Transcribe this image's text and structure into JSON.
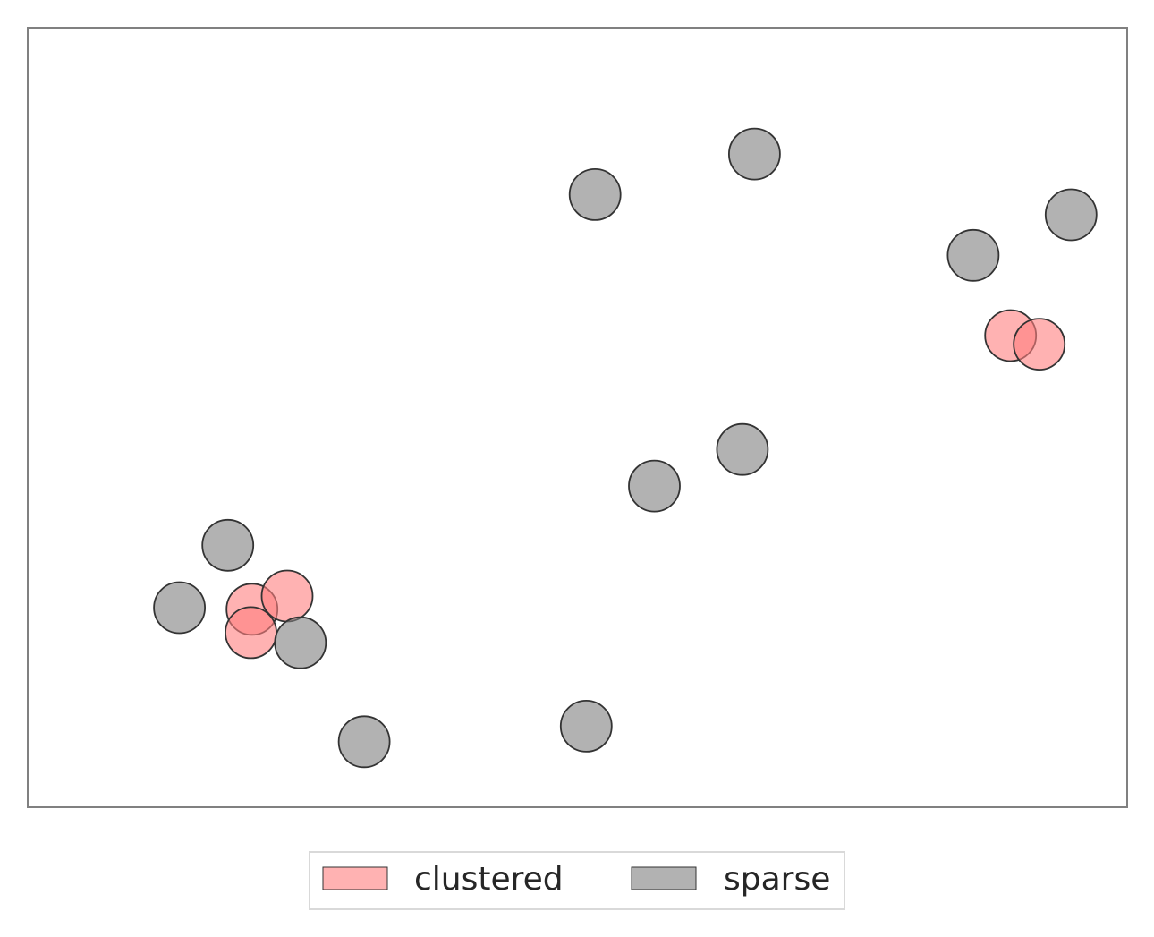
{
  "chart_data": {
    "type": "scatter",
    "title": "",
    "xlabel": "",
    "ylabel": "",
    "axes_visible": false,
    "grid": false,
    "xlim": [
      0,
      100
    ],
    "ylim": [
      0,
      100
    ],
    "legend": {
      "placement": "bottom-center",
      "columns": 2
    },
    "series": [
      {
        "name": "clustered",
        "color": "#ff7f7f",
        "alpha": 0.6,
        "edge_color": "#333333",
        "points": [
          {
            "x": 20.4,
            "y": 25.4
          },
          {
            "x": 23.6,
            "y": 27.1
          },
          {
            "x": 20.3,
            "y": 22.4
          },
          {
            "x": 89.4,
            "y": 60.5
          },
          {
            "x": 92.0,
            "y": 59.4
          }
        ]
      },
      {
        "name": "sparse",
        "color": "#7f7f7f",
        "alpha": 0.6,
        "edge_color": "#333333",
        "points": [
          {
            "x": 51.6,
            "y": 78.6
          },
          {
            "x": 66.1,
            "y": 83.8
          },
          {
            "x": 94.9,
            "y": 76.0
          },
          {
            "x": 86.0,
            "y": 70.8
          },
          {
            "x": 65.0,
            "y": 45.9
          },
          {
            "x": 57.0,
            "y": 41.2
          },
          {
            "x": 18.2,
            "y": 33.6
          },
          {
            "x": 13.8,
            "y": 25.6
          },
          {
            "x": 24.8,
            "y": 21.1
          },
          {
            "x": 30.6,
            "y": 8.4
          },
          {
            "x": 50.8,
            "y": 10.4
          }
        ]
      }
    ]
  }
}
